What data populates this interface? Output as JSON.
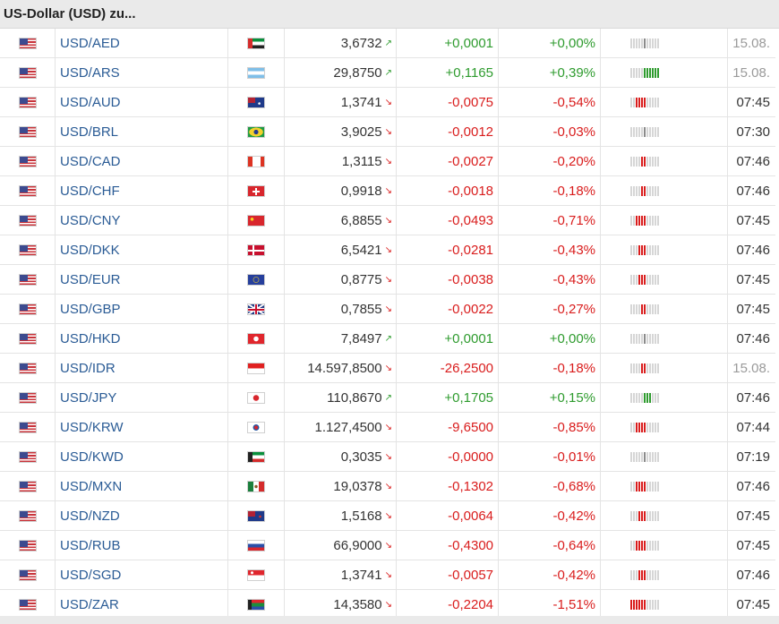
{
  "title": "US-Dollar (USD) zu...",
  "colors": {
    "positive": "#2e9b2e",
    "negative": "#d91c1c",
    "link": "#2a5b95",
    "muted": "#9a9a9a"
  },
  "rows": [
    {
      "pair": "USD/AED",
      "flag": "ae",
      "price": "3,6732",
      "dir": "up",
      "change": "+0,0001",
      "pct": "+0,00%",
      "time": "15.08.",
      "stale": true,
      "level": 0
    },
    {
      "pair": "USD/ARS",
      "flag": "ar",
      "price": "29,8750",
      "dir": "up",
      "change": "+0,1165",
      "pct": "+0,39%",
      "time": "15.08.",
      "stale": true,
      "level": 5
    },
    {
      "pair": "USD/AUD",
      "flag": "au",
      "price": "1,3741",
      "dir": "down",
      "change": "-0,0075",
      "pct": "-0,54%",
      "time": "07:45",
      "stale": false,
      "level": -3
    },
    {
      "pair": "USD/BRL",
      "flag": "br",
      "price": "3,9025",
      "dir": "down",
      "change": "-0,0012",
      "pct": "-0,03%",
      "time": "07:30",
      "stale": false,
      "level": 0
    },
    {
      "pair": "USD/CAD",
      "flag": "ca",
      "price": "1,3115",
      "dir": "down",
      "change": "-0,0027",
      "pct": "-0,20%",
      "time": "07:46",
      "stale": false,
      "level": -1
    },
    {
      "pair": "USD/CHF",
      "flag": "ch",
      "price": "0,9918",
      "dir": "down",
      "change": "-0,0018",
      "pct": "-0,18%",
      "time": "07:46",
      "stale": false,
      "level": -1
    },
    {
      "pair": "USD/CNY",
      "flag": "cn",
      "price": "6,8855",
      "dir": "down",
      "change": "-0,0493",
      "pct": "-0,71%",
      "time": "07:45",
      "stale": false,
      "level": -3
    },
    {
      "pair": "USD/DKK",
      "flag": "dk",
      "price": "6,5421",
      "dir": "down",
      "change": "-0,0281",
      "pct": "-0,43%",
      "time": "07:46",
      "stale": false,
      "level": -2
    },
    {
      "pair": "USD/EUR",
      "flag": "eu",
      "price": "0,8775",
      "dir": "down",
      "change": "-0,0038",
      "pct": "-0,43%",
      "time": "07:45",
      "stale": false,
      "level": -2
    },
    {
      "pair": "USD/GBP",
      "flag": "gb",
      "price": "0,7855",
      "dir": "down",
      "change": "-0,0022",
      "pct": "-0,27%",
      "time": "07:45",
      "stale": false,
      "level": -1
    },
    {
      "pair": "USD/HKD",
      "flag": "hk",
      "price": "7,8497",
      "dir": "up",
      "change": "+0,0001",
      "pct": "+0,00%",
      "time": "07:46",
      "stale": false,
      "level": 0
    },
    {
      "pair": "USD/IDR",
      "flag": "id",
      "price": "14.597,8500",
      "dir": "down",
      "change": "-26,2500",
      "pct": "-0,18%",
      "time": "15.08.",
      "stale": true,
      "level": -1
    },
    {
      "pair": "USD/JPY",
      "flag": "jp",
      "price": "110,8670",
      "dir": "up",
      "change": "+0,1705",
      "pct": "+0,15%",
      "time": "07:46",
      "stale": false,
      "level": 2
    },
    {
      "pair": "USD/KRW",
      "flag": "kr",
      "price": "1.127,4500",
      "dir": "down",
      "change": "-9,6500",
      "pct": "-0,85%",
      "time": "07:44",
      "stale": false,
      "level": -3
    },
    {
      "pair": "USD/KWD",
      "flag": "kw",
      "price": "0,3035",
      "dir": "down",
      "change": "-0,0000",
      "pct": "-0,01%",
      "time": "07:19",
      "stale": false,
      "level": 0
    },
    {
      "pair": "USD/MXN",
      "flag": "mx",
      "price": "19,0378",
      "dir": "down",
      "change": "-0,1302",
      "pct": "-0,68%",
      "time": "07:46",
      "stale": false,
      "level": -3
    },
    {
      "pair": "USD/NZD",
      "flag": "nz",
      "price": "1,5168",
      "dir": "down",
      "change": "-0,0064",
      "pct": "-0,42%",
      "time": "07:45",
      "stale": false,
      "level": -2
    },
    {
      "pair": "USD/RUB",
      "flag": "ru",
      "price": "66,9000",
      "dir": "down",
      "change": "-0,4300",
      "pct": "-0,64%",
      "time": "07:45",
      "stale": false,
      "level": -3
    },
    {
      "pair": "USD/SGD",
      "flag": "sg",
      "price": "1,3741",
      "dir": "down",
      "change": "-0,0057",
      "pct": "-0,42%",
      "time": "07:46",
      "stale": false,
      "level": -2
    },
    {
      "pair": "USD/ZAR",
      "flag": "za",
      "price": "14,3580",
      "dir": "down",
      "change": "-0,2204",
      "pct": "-1,51%",
      "time": "07:45",
      "stale": false,
      "level": -5
    }
  ]
}
